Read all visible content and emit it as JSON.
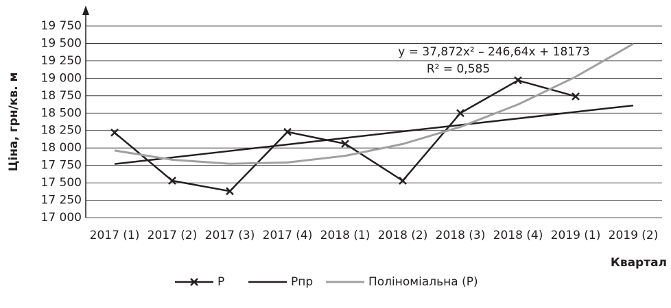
{
  "chart_data": {
    "type": "line",
    "y_label": "Ціна, грн/кв. м",
    "x_label": "Квартал",
    "annotations": [
      "y = 37,872x² – 246,64x + 18173",
      "R² = 0,585"
    ],
    "categories": [
      "2017 (1)",
      "2017 (2)",
      "2017 (3)",
      "2017 (4)",
      "2018 (1)",
      "2018 (2)",
      "2018 (3)",
      "2018 (4)",
      "2019 (1)",
      "2019 (2)"
    ],
    "series": [
      {
        "name": "Р",
        "color": "#231f20",
        "marker": "x",
        "values": [
          18220,
          17530,
          17380,
          18230,
          18060,
          17530,
          18500,
          18970,
          18740,
          null
        ]
      },
      {
        "name": "Рпр",
        "color": "#231f20",
        "values": [
          17770,
          17863,
          17957,
          18050,
          18143,
          18237,
          18330,
          18423,
          18517,
          18610
        ]
      },
      {
        "name": "Поліноміальна (Р)",
        "color": "#a0a0a0",
        "values": [
          17964,
          17831,
          17774,
          17792,
          17887,
          18057,
          18302,
          18624,
          19021,
          19494
        ]
      }
    ],
    "ylim": [
      17000,
      19750
    ],
    "yticks": [
      {
        "value": 17000,
        "label": "17 000"
      },
      {
        "value": 17250,
        "label": "17 250"
      },
      {
        "value": 17500,
        "label": "17 500"
      },
      {
        "value": 17750,
        "label": "17 750"
      },
      {
        "value": 18000,
        "label": "18 000"
      },
      {
        "value": 18250,
        "label": "18 250"
      },
      {
        "value": 18500,
        "label": "18 500"
      },
      {
        "value": 18750,
        "label": "18 750"
      },
      {
        "value": 19000,
        "label": "19 000"
      },
      {
        "value": 19250,
        "label": "19 250"
      },
      {
        "value": 19500,
        "label": "19 500"
      },
      {
        "value": 19750,
        "label": "19 750"
      }
    ],
    "grid": true,
    "legend": "bottom"
  }
}
